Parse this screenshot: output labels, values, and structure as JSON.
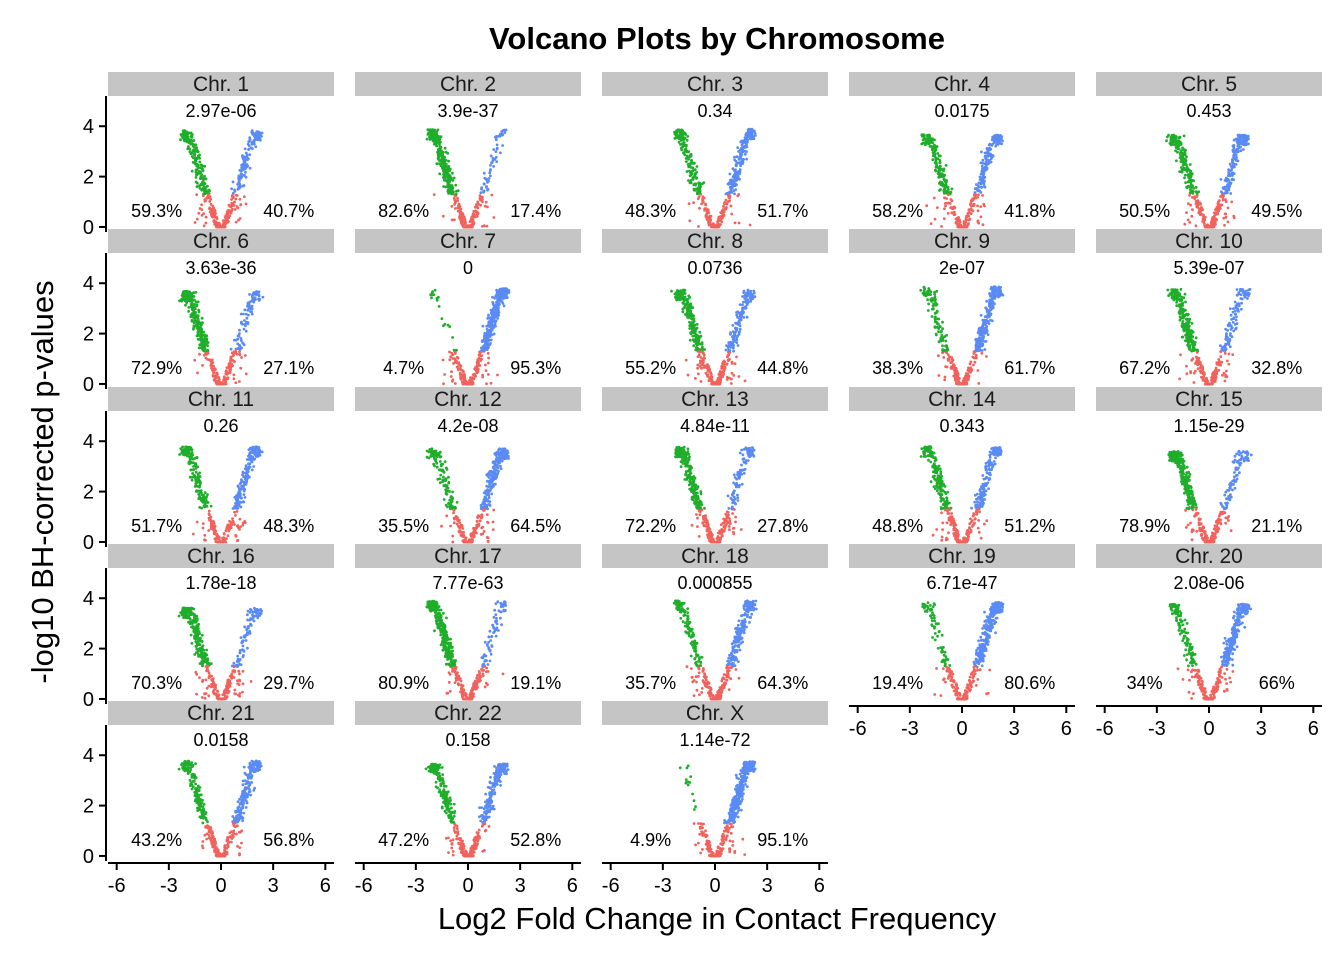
{
  "chart_data": {
    "type": "scatter",
    "title": "Volcano Plots by Chromosome",
    "xlabel": "Log2 Fold Change in Contact Frequency",
    "ylabel": "-log10 BH-corrected p-values",
    "xlim": [
      -6.5,
      6.5
    ],
    "ylim": [
      -0.2,
      5.2
    ],
    "x_ticks": [
      -6,
      -3,
      0,
      3,
      6
    ],
    "x_tick_labels": [
      "-6",
      "-3",
      "0",
      "3",
      "6"
    ],
    "y_ticks": [
      0,
      2,
      4
    ],
    "y_tick_labels": [
      "0",
      "2",
      "4"
    ],
    "grid": false,
    "legend": "none",
    "colors": {
      "down_significant": "#1FAE2B",
      "up_significant": "#5A8BF5",
      "not_significant": "#F2625C",
      "strip_background": "#C5C5C5"
    },
    "panels": [
      {
        "label": "Chr. 1",
        "pvalue": "2.97e-06",
        "left_pct": "59.3%",
        "right_pct": "40.7%"
      },
      {
        "label": "Chr. 2",
        "pvalue": "3.9e-37",
        "left_pct": "82.6%",
        "right_pct": "17.4%"
      },
      {
        "label": "Chr. 3",
        "pvalue": "0.34",
        "left_pct": "48.3%",
        "right_pct": "51.7%"
      },
      {
        "label": "Chr. 4",
        "pvalue": "0.0175",
        "left_pct": "58.2%",
        "right_pct": "41.8%"
      },
      {
        "label": "Chr. 5",
        "pvalue": "0.453",
        "left_pct": "50.5%",
        "right_pct": "49.5%"
      },
      {
        "label": "Chr. 6",
        "pvalue": "3.63e-36",
        "left_pct": "72.9%",
        "right_pct": "27.1%"
      },
      {
        "label": "Chr. 7",
        "pvalue": "0",
        "left_pct": "4.7%",
        "right_pct": "95.3%"
      },
      {
        "label": "Chr. 8",
        "pvalue": "0.0736",
        "left_pct": "55.2%",
        "right_pct": "44.8%"
      },
      {
        "label": "Chr. 9",
        "pvalue": "2e-07",
        "left_pct": "38.3%",
        "right_pct": "61.7%"
      },
      {
        "label": "Chr. 10",
        "pvalue": "5.39e-07",
        "left_pct": "67.2%",
        "right_pct": "32.8%"
      },
      {
        "label": "Chr. 11",
        "pvalue": "0.26",
        "left_pct": "51.7%",
        "right_pct": "48.3%"
      },
      {
        "label": "Chr. 12",
        "pvalue": "4.2e-08",
        "left_pct": "35.5%",
        "right_pct": "64.5%"
      },
      {
        "label": "Chr. 13",
        "pvalue": "4.84e-11",
        "left_pct": "72.2%",
        "right_pct": "27.8%"
      },
      {
        "label": "Chr. 14",
        "pvalue": "0.343",
        "left_pct": "48.8%",
        "right_pct": "51.2%"
      },
      {
        "label": "Chr. 15",
        "pvalue": "1.15e-29",
        "left_pct": "78.9%",
        "right_pct": "21.1%"
      },
      {
        "label": "Chr. 16",
        "pvalue": "1.78e-18",
        "left_pct": "70.3%",
        "right_pct": "29.7%"
      },
      {
        "label": "Chr. 17",
        "pvalue": "7.77e-63",
        "left_pct": "80.9%",
        "right_pct": "19.1%"
      },
      {
        "label": "Chr. 18",
        "pvalue": "0.000855",
        "left_pct": "35.7%",
        "right_pct": "64.3%"
      },
      {
        "label": "Chr. 19",
        "pvalue": "6.71e-47",
        "left_pct": "19.4%",
        "right_pct": "80.6%"
      },
      {
        "label": "Chr. 20",
        "pvalue": "2.08e-06",
        "left_pct": "34%",
        "right_pct": "66%"
      },
      {
        "label": "Chr. 21",
        "pvalue": "0.0158",
        "left_pct": "43.2%",
        "right_pct": "56.8%"
      },
      {
        "label": "Chr. 22",
        "pvalue": "0.158",
        "left_pct": "47.2%",
        "right_pct": "52.8%"
      },
      {
        "label": "Chr. X",
        "pvalue": "1.14e-72",
        "left_pct": "4.9%",
        "right_pct": "95.1%"
      }
    ]
  }
}
